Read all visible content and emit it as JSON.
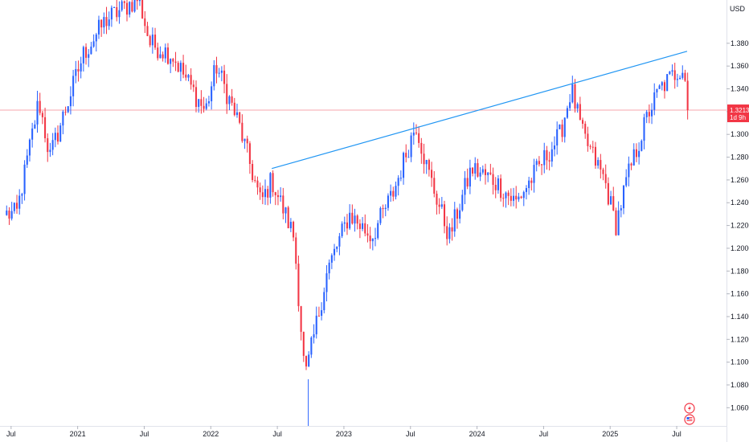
{
  "chart_data": {
    "type": "candlestick",
    "title": "",
    "currency": "USD",
    "x_tick_labels": [
      "Jul",
      "2021",
      "Jul",
      "2022",
      "Jul",
      "2023",
      "Jul",
      "2024",
      "Jul",
      "2025",
      "Jul"
    ],
    "x_tick_dates": [
      "2020-07",
      "2021-01",
      "2021-07",
      "2022-01",
      "2022-07",
      "2023-01",
      "2023-07",
      "2024-01",
      "2024-07",
      "2025-01",
      "2025-07"
    ],
    "y_tick_labels": [
      "1.3800",
      "1.3600",
      "1.3400",
      "1.3200",
      "1.3000",
      "1.2800",
      "1.2600",
      "1.2400",
      "1.2200",
      "1.2000",
      "1.1800",
      "1.1600",
      "1.1400",
      "1.1200",
      "1.1000",
      "1.0800",
      "1.0600"
    ],
    "ylim": [
      1.044,
      1.418
    ],
    "last_price": "1.3213",
    "last_price_value": 1.3213,
    "countdown": "1d 9h",
    "grid": false,
    "colors": {
      "up": "#2962ff",
      "down": "#f23645",
      "trendline": "#2196f3",
      "price_line": "#f7a6ad",
      "badge": "#f23645",
      "background": "#ffffff"
    },
    "trendline": {
      "start": {
        "date": "2022-06",
        "value": 1.27
      },
      "end": {
        "date": "2025-07",
        "value": 1.373
      }
    },
    "key_points": [
      {
        "date": "2020-07",
        "value": 1.23
      },
      {
        "date": "2020-09",
        "value": 1.33
      },
      {
        "date": "2020-10",
        "value": 1.28
      },
      {
        "date": "2021-01",
        "value": 1.37
      },
      {
        "date": "2021-03",
        "value": 1.4
      },
      {
        "date": "2021-06",
        "value": 1.42
      },
      {
        "date": "2021-07",
        "value": 1.38
      },
      {
        "date": "2021-09",
        "value": 1.37
      },
      {
        "date": "2021-12",
        "value": 1.32
      },
      {
        "date": "2022-01",
        "value": 1.36
      },
      {
        "date": "2022-03",
        "value": 1.31
      },
      {
        "date": "2022-05",
        "value": 1.24
      },
      {
        "date": "2022-06",
        "value": 1.26
      },
      {
        "date": "2022-08",
        "value": 1.21
      },
      {
        "date": "2022-09",
        "value": 1.085
      },
      {
        "date": "2022-11",
        "value": 1.18
      },
      {
        "date": "2023-01",
        "value": 1.23
      },
      {
        "date": "2023-03",
        "value": 1.21
      },
      {
        "date": "2023-05",
        "value": 1.25
      },
      {
        "date": "2023-07",
        "value": 1.31
      },
      {
        "date": "2023-08",
        "value": 1.27
      },
      {
        "date": "2023-10",
        "value": 1.21
      },
      {
        "date": "2023-12",
        "value": 1.27
      },
      {
        "date": "2024-02",
        "value": 1.26
      },
      {
        "date": "2024-04",
        "value": 1.24
      },
      {
        "date": "2024-06",
        "value": 1.27
      },
      {
        "date": "2024-08",
        "value": 1.3
      },
      {
        "date": "2024-09",
        "value": 1.34
      },
      {
        "date": "2024-10",
        "value": 1.3
      },
      {
        "date": "2024-12",
        "value": 1.26
      },
      {
        "date": "2025-01",
        "value": 1.22
      },
      {
        "date": "2025-02",
        "value": 1.26
      },
      {
        "date": "2025-04",
        "value": 1.32
      },
      {
        "date": "2025-05",
        "value": 1.34
      },
      {
        "date": "2025-07",
        "value": 1.36
      },
      {
        "date": "2025-08",
        "value": 1.3213
      }
    ]
  },
  "icons": {
    "lightning": "lightning-icon",
    "flag": "us-flag-icon"
  }
}
